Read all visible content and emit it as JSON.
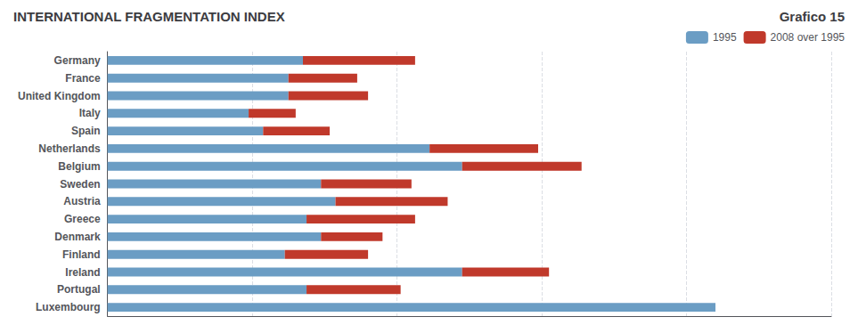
{
  "chart_data": {
    "type": "bar",
    "title": "INTERNATIONAL FRAGMENTATION INDEX",
    "subtitle": "Grafico 15",
    "orientation": "horizontal",
    "stacked": true,
    "categories": [
      "Germany",
      "France",
      "United Kingdom",
      "Italy",
      "Spain",
      "Netherlands",
      "Belgium",
      "Sweden",
      "Austria",
      "Greece",
      "Denmark",
      "Finland",
      "Ireland",
      "Portugal",
      "Luxembourg"
    ],
    "series": [
      {
        "name": "1995",
        "color": "#6B9DC4",
        "values": [
          0.27,
          0.25,
          0.25,
          0.195,
          0.215,
          0.445,
          0.49,
          0.295,
          0.315,
          0.275,
          0.295,
          0.245,
          0.49,
          0.275,
          0.84
        ]
      },
      {
        "name": "2008 over 1995",
        "color": "#C0392B",
        "values": [
          0.155,
          0.095,
          0.11,
          0.065,
          0.092,
          0.15,
          0.165,
          0.125,
          0.155,
          0.15,
          0.085,
          0.115,
          0.12,
          0.13,
          0.0
        ]
      }
    ],
    "xlim": [
      0,
      1.0
    ],
    "xticks": [
      0,
      0.2,
      0.4,
      0.6,
      0.8,
      1.0
    ],
    "grid": true,
    "tick_labels": "y",
    "legend": "upper right"
  }
}
